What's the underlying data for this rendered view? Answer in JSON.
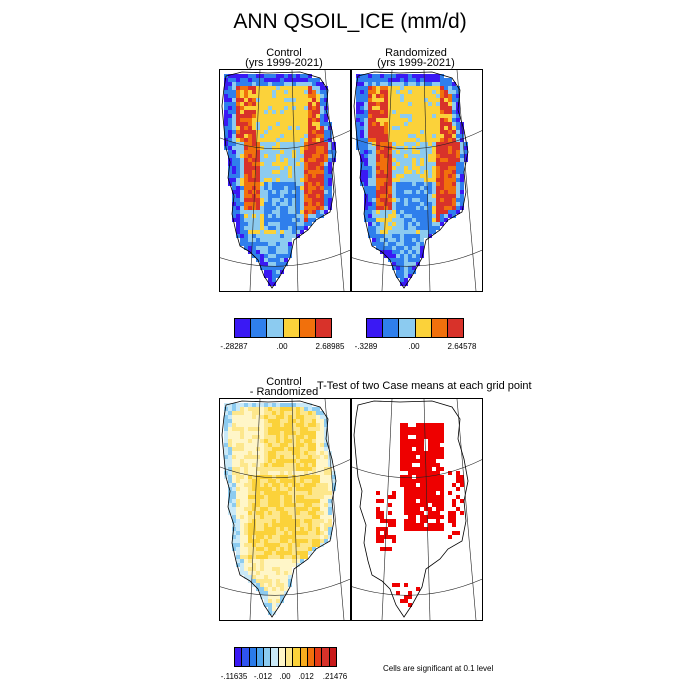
{
  "figure": {
    "title": "ANN QSOIL_ICE (mm/d)"
  },
  "panels": [
    {
      "title_line1": "Control",
      "title_line2": "(yrs 1999-2021)"
    },
    {
      "title_line1": "Randomized",
      "title_line2": "(yrs 1999-2021)"
    },
    {
      "title_line1": "Control",
      "title_line2": "- Randomized"
    },
    {
      "title_line1": "T-Test of two Case means at each grid point",
      "title_line2": ""
    }
  ],
  "colorbars": {
    "control": {
      "colors": [
        "#3a19f4",
        "#2f7fec",
        "#8ccbf0",
        "#fbd23a",
        "#f1700c",
        "#d8322a"
      ],
      "labels": [
        "-.28287",
        ".00",
        "2.68985"
      ]
    },
    "randomized": {
      "colors": [
        "#3a19f4",
        "#2f7fec",
        "#8ccbf0",
        "#fbd23a",
        "#f1700c",
        "#d8322a"
      ],
      "labels": [
        "-.3289",
        ".00",
        "2.64578"
      ]
    },
    "difference": {
      "colors": [
        "#3a19f4",
        "#2f53f0",
        "#2a7bea",
        "#4fa6ee",
        "#8ccbf0",
        "#c9e9f8",
        "#fff6c8",
        "#fde78c",
        "#fbd23a",
        "#f7ac1e",
        "#f1700c",
        "#e63b17",
        "#d8322a",
        "#c91a1a"
      ],
      "labels": [
        "-.11635",
        "-.012",
        ".00",
        ".012",
        ".21476"
      ]
    }
  },
  "significance_note": "Cells are significant at 0.1 level",
  "map_colors": {
    "purple": "#3a19f4",
    "blue": "#2f7fec",
    "light_blue": "#8ccbf0",
    "yellow": "#fbd23a",
    "orange": "#f1700c",
    "red": "#d8322a",
    "diff_pale": "#fff6c8",
    "diff_light": "#fde78c",
    "diff_yellow": "#fbd23a",
    "diff_pale_blue": "#c9e9f8",
    "diff_blue": "#8ccbf0",
    "sig_red": "#ee0000"
  }
}
